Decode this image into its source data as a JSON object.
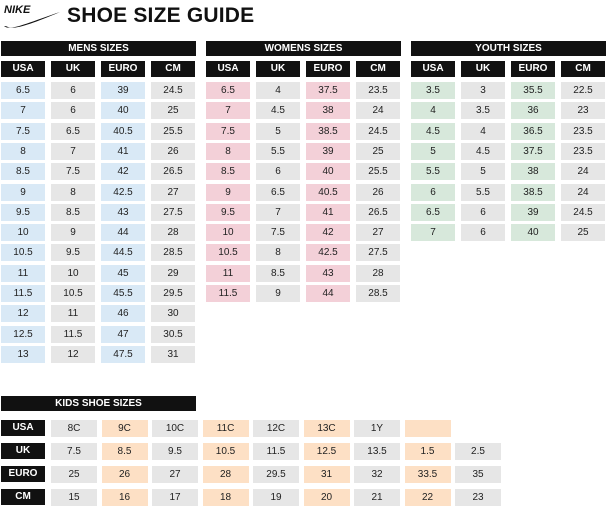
{
  "page": {
    "brand": "NIKE",
    "title": "SHOE SIZE GUIDE"
  },
  "colors": {
    "header_bg": "#111111",
    "header_text": "#ffffff",
    "gray": "#e6e6e6",
    "mens_highlight": "#d9e9f6",
    "womens_highlight": "#f3d0d8",
    "youth_highlight": "#d7e8db",
    "kids_highlight": "#fde0c5"
  },
  "columns": [
    "USA",
    "UK",
    "EURO",
    "CM"
  ],
  "mens": {
    "title": "MENS SIZES",
    "rows": [
      [
        "6.5",
        "6",
        "39",
        "24.5"
      ],
      [
        "7",
        "6",
        "40",
        "25"
      ],
      [
        "7.5",
        "6.5",
        "40.5",
        "25.5"
      ],
      [
        "8",
        "7",
        "41",
        "26"
      ],
      [
        "8.5",
        "7.5",
        "42",
        "26.5"
      ],
      [
        "9",
        "8",
        "42.5",
        "27"
      ],
      [
        "9.5",
        "8.5",
        "43",
        "27.5"
      ],
      [
        "10",
        "9",
        "44",
        "28"
      ],
      [
        "10.5",
        "9.5",
        "44.5",
        "28.5"
      ],
      [
        "11",
        "10",
        "45",
        "29"
      ],
      [
        "11.5",
        "10.5",
        "45.5",
        "29.5"
      ],
      [
        "12",
        "11",
        "46",
        "30"
      ],
      [
        "12.5",
        "11.5",
        "47",
        "30.5"
      ],
      [
        "13",
        "12",
        "47.5",
        "31"
      ]
    ]
  },
  "womens": {
    "title": "WOMENS SIZES",
    "rows": [
      [
        "6.5",
        "4",
        "37.5",
        "23.5"
      ],
      [
        "7",
        "4.5",
        "38",
        "24"
      ],
      [
        "7.5",
        "5",
        "38.5",
        "24.5"
      ],
      [
        "8",
        "5.5",
        "39",
        "25"
      ],
      [
        "8.5",
        "6",
        "40",
        "25.5"
      ],
      [
        "9",
        "6.5",
        "40.5",
        "26"
      ],
      [
        "9.5",
        "7",
        "41",
        "26.5"
      ],
      [
        "10",
        "7.5",
        "42",
        "27"
      ],
      [
        "10.5",
        "8",
        "42.5",
        "27.5"
      ],
      [
        "11",
        "8.5",
        "43",
        "28"
      ],
      [
        "11.5",
        "9",
        "44",
        "28.5"
      ]
    ]
  },
  "youth": {
    "title": "YOUTH SIZES",
    "rows": [
      [
        "3.5",
        "3",
        "35.5",
        "22.5"
      ],
      [
        "4",
        "3.5",
        "36",
        "23"
      ],
      [
        "4.5",
        "4",
        "36.5",
        "23.5"
      ],
      [
        "5",
        "4.5",
        "37.5",
        "23.5"
      ],
      [
        "5.5",
        "5",
        "38",
        "24"
      ],
      [
        "6",
        "5.5",
        "38.5",
        "24"
      ],
      [
        "6.5",
        "6",
        "39",
        "24.5"
      ],
      [
        "7",
        "6",
        "40",
        "25"
      ]
    ]
  },
  "kids": {
    "title": "KIDS SHOE SIZES",
    "rows": [
      {
        "label": "USA",
        "cells": [
          "8C",
          "9C",
          "10C",
          "11C",
          "12C",
          "13C",
          "1Y",
          "",
          ""
        ]
      },
      {
        "label": "UK",
        "cells": [
          "7.5",
          "8.5",
          "9.5",
          "10.5",
          "11.5",
          "12.5",
          "13.5",
          "1.5",
          "2.5"
        ]
      },
      {
        "label": "EURO",
        "cells": [
          "25",
          "26",
          "27",
          "28",
          "29.5",
          "31",
          "32",
          "33.5",
          "35"
        ]
      },
      {
        "label": "CM",
        "cells": [
          "15",
          "16",
          "17",
          "18",
          "19",
          "20",
          "21",
          "22",
          "23"
        ]
      }
    ]
  }
}
